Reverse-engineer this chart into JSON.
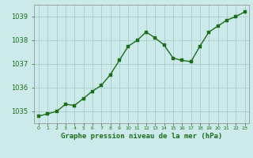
{
  "x": [
    0,
    1,
    2,
    3,
    4,
    5,
    6,
    7,
    8,
    9,
    10,
    11,
    12,
    13,
    14,
    15,
    16,
    17,
    18,
    19,
    20,
    21,
    22,
    23
  ],
  "y": [
    1034.8,
    1034.9,
    1035.0,
    1035.3,
    1035.25,
    1035.55,
    1035.85,
    1036.1,
    1036.55,
    1037.15,
    1037.75,
    1038.0,
    1038.35,
    1038.1,
    1037.8,
    1037.25,
    1037.15,
    1037.1,
    1037.75,
    1038.35,
    1038.6,
    1038.85,
    1039.0,
    1039.2
  ],
  "line_color": "#1a6e1a",
  "marker_color": "#1a6e1a",
  "bg_color": "#cceaea",
  "grid_color": "#aacccc",
  "axis_label_color": "#1a6e1a",
  "tick_color": "#1a6e1a",
  "xlabel": "Graphe pression niveau de la mer (hPa)",
  "ylim": [
    1034.5,
    1039.5
  ],
  "yticks": [
    1035,
    1036,
    1037,
    1038,
    1039
  ],
  "xticks": [
    0,
    1,
    2,
    3,
    4,
    5,
    6,
    7,
    8,
    9,
    10,
    11,
    12,
    13,
    14,
    15,
    16,
    17,
    18,
    19,
    20,
    21,
    22,
    23
  ],
  "marker_size": 2.5,
  "line_width": 1.0
}
